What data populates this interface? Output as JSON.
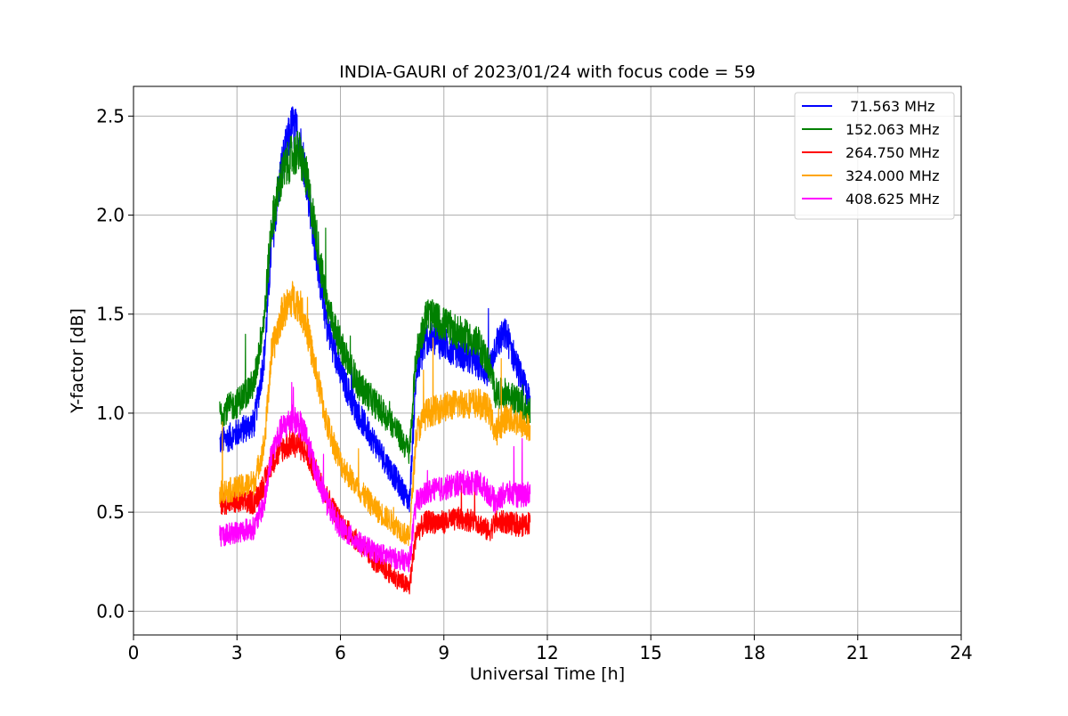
{
  "chart_data": {
    "type": "line",
    "title": "INDIA-GAURI of 2023/01/24 with focus code = 59",
    "xlabel": "Universal Time [h]",
    "ylabel": "Y-factor [dB]",
    "xlim": [
      0,
      24
    ],
    "ylim": [
      -0.12,
      2.65
    ],
    "xticks": [
      0,
      3,
      6,
      9,
      12,
      15,
      18,
      21,
      24
    ],
    "yticks": [
      0.0,
      0.5,
      1.0,
      1.5,
      2.0,
      2.5
    ],
    "xtick_labels": [
      "0",
      "3",
      "6",
      "9",
      "12",
      "15",
      "18",
      "21",
      "24"
    ],
    "ytick_labels": [
      "0.0",
      "0.5",
      "1.0",
      "1.5",
      "2.0",
      "2.5"
    ],
    "grid": true,
    "legend_position": "top-right",
    "series": [
      {
        "name": " 71.563 MHz",
        "color": "#0000ff",
        "x": [
          2.5,
          3.0,
          3.5,
          3.8,
          4.0,
          4.3,
          4.6,
          4.8,
          5.0,
          5.3,
          5.6,
          6.0,
          6.5,
          7.0,
          7.5,
          8.0,
          8.2,
          8.5,
          9.0,
          9.5,
          10.0,
          10.3,
          10.5,
          10.8,
          11.2,
          11.5
        ],
        "y": [
          0.85,
          0.9,
          0.95,
          1.3,
          1.85,
          2.25,
          2.45,
          2.4,
          2.2,
          1.8,
          1.45,
          1.2,
          1.0,
          0.85,
          0.7,
          0.55,
          1.2,
          1.38,
          1.35,
          1.3,
          1.25,
          1.2,
          1.35,
          1.4,
          1.2,
          1.05
        ]
      },
      {
        "name": "152.063 MHz",
        "color": "#008000",
        "x": [
          2.5,
          3.0,
          3.5,
          3.8,
          4.0,
          4.3,
          4.6,
          4.8,
          5.0,
          5.3,
          5.6,
          6.0,
          6.5,
          7.0,
          7.5,
          8.0,
          8.2,
          8.5,
          9.0,
          9.5,
          10.0,
          10.3,
          10.5,
          10.8,
          11.2,
          11.5
        ],
        "y": [
          1.0,
          1.05,
          1.15,
          1.5,
          1.95,
          2.2,
          2.3,
          2.32,
          2.2,
          1.9,
          1.55,
          1.35,
          1.15,
          1.05,
          0.95,
          0.8,
          1.3,
          1.5,
          1.45,
          1.4,
          1.35,
          1.25,
          1.1,
          1.1,
          1.05,
          1.0
        ]
      },
      {
        "name": "264.750 MHz",
        "color": "#ff0000",
        "x": [
          2.5,
          3.0,
          3.5,
          3.8,
          4.0,
          4.3,
          4.6,
          4.8,
          5.0,
          5.3,
          5.6,
          6.0,
          6.5,
          7.0,
          7.5,
          8.0,
          8.2,
          8.5,
          9.0,
          9.5,
          10.0,
          10.3,
          10.5,
          10.8,
          11.2,
          11.5
        ],
        "y": [
          0.55,
          0.55,
          0.55,
          0.65,
          0.75,
          0.82,
          0.85,
          0.84,
          0.8,
          0.7,
          0.58,
          0.45,
          0.35,
          0.25,
          0.18,
          0.12,
          0.4,
          0.45,
          0.45,
          0.47,
          0.45,
          0.4,
          0.45,
          0.45,
          0.43,
          0.45
        ]
      },
      {
        "name": "324.000 MHz",
        "color": "#ffa500",
        "x": [
          2.5,
          3.0,
          3.5,
          3.8,
          4.0,
          4.3,
          4.6,
          4.8,
          5.0,
          5.3,
          5.6,
          6.0,
          6.5,
          7.0,
          7.5,
          8.0,
          8.2,
          8.5,
          9.0,
          9.5,
          10.0,
          10.3,
          10.5,
          10.8,
          11.2,
          11.5
        ],
        "y": [
          0.6,
          0.62,
          0.65,
          0.85,
          1.3,
          1.5,
          1.58,
          1.55,
          1.45,
          1.2,
          0.95,
          0.75,
          0.62,
          0.52,
          0.45,
          0.37,
          0.9,
          1.0,
          1.03,
          1.05,
          1.05,
          1.02,
          0.9,
          0.98,
          0.95,
          0.92
        ]
      },
      {
        "name": "408.625 MHz",
        "color": "#ff00ff",
        "x": [
          2.5,
          3.0,
          3.5,
          3.8,
          4.0,
          4.3,
          4.6,
          4.8,
          5.0,
          5.3,
          5.6,
          6.0,
          6.5,
          7.0,
          7.5,
          8.0,
          8.2,
          8.5,
          9.0,
          9.5,
          10.0,
          10.3,
          10.5,
          10.8,
          11.2,
          11.5
        ],
        "y": [
          0.38,
          0.4,
          0.42,
          0.55,
          0.8,
          0.92,
          0.97,
          0.95,
          0.88,
          0.7,
          0.55,
          0.42,
          0.35,
          0.3,
          0.27,
          0.25,
          0.55,
          0.6,
          0.62,
          0.65,
          0.65,
          0.6,
          0.55,
          0.6,
          0.58,
          0.6
        ]
      }
    ]
  }
}
